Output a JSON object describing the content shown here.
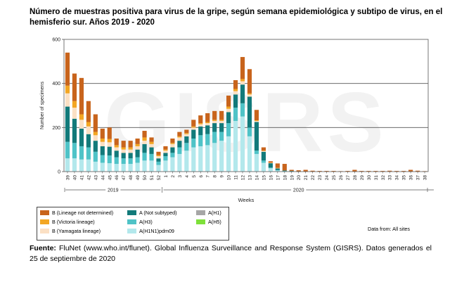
{
  "title": "Número de muestras positiva para virus de la gripe, según semana epidemiológica y subtipo de virus, en el hemisferio sur. Años 2019 - 2020",
  "watermark": "GISRS",
  "footer": {
    "label": "Fuente:",
    "text": "FluNet (www.who.int/flunet). Global Influenza Surveillance and Response System (GISRS). Datos generados el 25 de septiembre de 2020"
  },
  "data_from": "Data from: All sites",
  "chart_data": {
    "type": "bar",
    "stacked": true,
    "xlabel": "Weeks",
    "ylabel": "Number of specimens",
    "ylim": [
      0,
      600
    ],
    "yticks": [
      0,
      200,
      400,
      600
    ],
    "grid": "horizontal",
    "year_groups": [
      {
        "label": "2019",
        "start": 0,
        "end": 13
      },
      {
        "label": "2020",
        "start": 14,
        "end": 52
      }
    ],
    "categories": [
      "39",
      "40",
      "41",
      "42",
      "43",
      "44",
      "45",
      "46",
      "47",
      "48",
      "49",
      "50",
      "51",
      "52",
      "1",
      "2",
      "3",
      "4",
      "5",
      "6",
      "7",
      "8",
      "9",
      "10",
      "11",
      "12",
      "13",
      "14",
      "15",
      "16",
      "17",
      "18",
      "19",
      "20",
      "21",
      "22",
      "23",
      "24",
      "25",
      "26",
      "27",
      "28",
      "29",
      "30",
      "31",
      "32",
      "33",
      "34",
      "35",
      "36",
      "37",
      "38"
    ],
    "series": [
      {
        "name": "A(H1N1)pdm09",
        "color": "#b3e8ec",
        "values": [
          60,
          60,
          55,
          55,
          45,
          40,
          38,
          35,
          35,
          35,
          40,
          50,
          50,
          30,
          50,
          65,
          80,
          95,
          110,
          115,
          120,
          130,
          140,
          160,
          230,
          250,
          160,
          80,
          40,
          15,
          5,
          2,
          1,
          0,
          0,
          0,
          0,
          0,
          0,
          0,
          0,
          0,
          0,
          0,
          0,
          0,
          0,
          0,
          0,
          0,
          0,
          0
        ]
      },
      {
        "name": "A(H3)",
        "color": "#4fc3c7",
        "values": [
          75,
          70,
          60,
          55,
          45,
          35,
          35,
          30,
          25,
          25,
          25,
          35,
          30,
          15,
          20,
          20,
          30,
          35,
          40,
          50,
          50,
          50,
          40,
          60,
          60,
          60,
          40,
          15,
          10,
          3,
          2,
          1,
          0,
          0,
          0,
          0,
          0,
          0,
          0,
          0,
          0,
          0,
          0,
          0,
          0,
          0,
          0,
          0,
          0,
          0,
          0,
          0
        ]
      },
      {
        "name": "A(H1)",
        "color": "#a6a6a6",
        "values": [
          0,
          0,
          0,
          0,
          0,
          0,
          0,
          0,
          0,
          0,
          0,
          0,
          0,
          0,
          0,
          0,
          0,
          0,
          0,
          0,
          0,
          0,
          0,
          0,
          0,
          0,
          0,
          0,
          0,
          0,
          0,
          0,
          0,
          0,
          0,
          0,
          0,
          0,
          0,
          0,
          0,
          0,
          0,
          0,
          0,
          0,
          0,
          0,
          0,
          0,
          0,
          0
        ]
      },
      {
        "name": "A(H5)",
        "color": "#7ee03a",
        "values": [
          0,
          0,
          0,
          0,
          0,
          0,
          0,
          0,
          0,
          0,
          0,
          0,
          0,
          0,
          0,
          0,
          0,
          0,
          0,
          0,
          0,
          0,
          0,
          0,
          0,
          0,
          0,
          0,
          0,
          0,
          0,
          0,
          0,
          0,
          0,
          0,
          0,
          0,
          0,
          0,
          0,
          0,
          0,
          0,
          0,
          0,
          0,
          0,
          0,
          0,
          0,
          0
        ]
      },
      {
        "name": "A (Not subtyped)",
        "color": "#127a7a",
        "values": [
          160,
          110,
          80,
          60,
          50,
          40,
          40,
          30,
          25,
          25,
          35,
          40,
          30,
          15,
          15,
          25,
          30,
          30,
          40,
          40,
          40,
          40,
          40,
          50,
          60,
          85,
          140,
          130,
          40,
          20,
          8,
          2,
          2,
          1,
          0,
          0,
          0,
          0,
          0,
          0,
          0,
          0,
          0,
          0,
          0,
          0,
          0,
          0,
          0,
          0,
          0,
          0
        ]
      },
      {
        "name": "B (Yamagata lineage)",
        "color": "#fbe0c4",
        "values": [
          60,
          50,
          40,
          35,
          25,
          20,
          20,
          15,
          15,
          15,
          15,
          15,
          15,
          10,
          10,
          15,
          15,
          10,
          10,
          10,
          10,
          10,
          10,
          15,
          15,
          15,
          10,
          5,
          3,
          2,
          1,
          0,
          0,
          0,
          0,
          0,
          0,
          0,
          0,
          0,
          0,
          0,
          0,
          0,
          0,
          0,
          0,
          0,
          0,
          0,
          0,
          0
        ]
      },
      {
        "name": "B (Victoria lineage)",
        "color": "#f3a623",
        "values": [
          35,
          30,
          25,
          20,
          15,
          15,
          15,
          10,
          10,
          10,
          10,
          15,
          10,
          5,
          5,
          5,
          5,
          5,
          5,
          5,
          5,
          5,
          5,
          10,
          10,
          10,
          5,
          3,
          2,
          1,
          1,
          0,
          0,
          0,
          0,
          0,
          0,
          0,
          0,
          0,
          0,
          0,
          0,
          0,
          0,
          0,
          0,
          0,
          0,
          0,
          0,
          0
        ]
      },
      {
        "name": "B (Lineage not determined)",
        "color": "#c8641c",
        "values": [
          150,
          125,
          165,
          95,
          80,
          45,
          52,
          30,
          30,
          30,
          25,
          30,
          20,
          15,
          15,
          20,
          20,
          15,
          30,
          35,
          40,
          40,
          40,
          50,
          40,
          100,
          110,
          47,
          15,
          6,
          20,
          30,
          5,
          5,
          8,
          4,
          3,
          3,
          3,
          2,
          3,
          8,
          3,
          3,
          3,
          3,
          4,
          3,
          3,
          8,
          4,
          2
        ]
      }
    ],
    "legend": {
      "position": "bottom-left",
      "columns": [
        [
          "B (Lineage not determined)",
          "B (Victoria lineage)",
          "B (Yamagata lineage)"
        ],
        [
          "A (Not subtyped)",
          "A(H3)",
          "A(H1N1)pdm09"
        ],
        [
          "A(H1)",
          "A(H5)"
        ]
      ]
    }
  }
}
